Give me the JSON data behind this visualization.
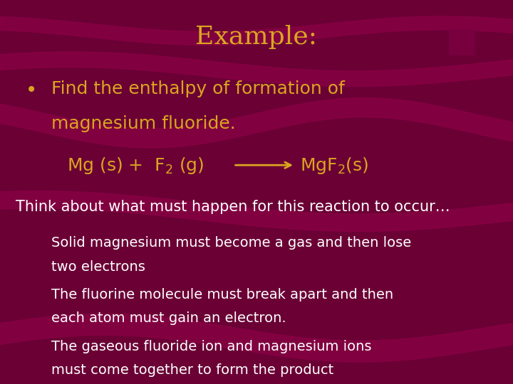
{
  "title": "Example:",
  "title_color": "#DAA520",
  "title_fontsize": 26,
  "bg_color": "#6B0035",
  "bullet_text_line1": "Find the enthalpy of formation of",
  "bullet_text_line2": "magnesium fluoride.",
  "bullet_color": "#DAA520",
  "bullet_fontsize": 18,
  "equation_color": "#DAA520",
  "equation_fontsize": 18,
  "body_color": "#FFFFFF",
  "body_fontsize": 15,
  "indent_body_fontsize": 14,
  "think_text": "Think about what must happen for this reaction to occur…",
  "bullet1_line1": "Solid magnesium must become a gas and then lose",
  "bullet1_line2": "two electrons",
  "bullet2_line1": "The fluorine molecule must break apart and then",
  "bullet2_line2": "each atom must gain an electron.",
  "bullet3_line1": "The gaseous fluoride ion and magnesium ions",
  "bullet3_line2": "must come together to form the product",
  "wave_color": "#8B0045",
  "rect_color": "#7A0040"
}
